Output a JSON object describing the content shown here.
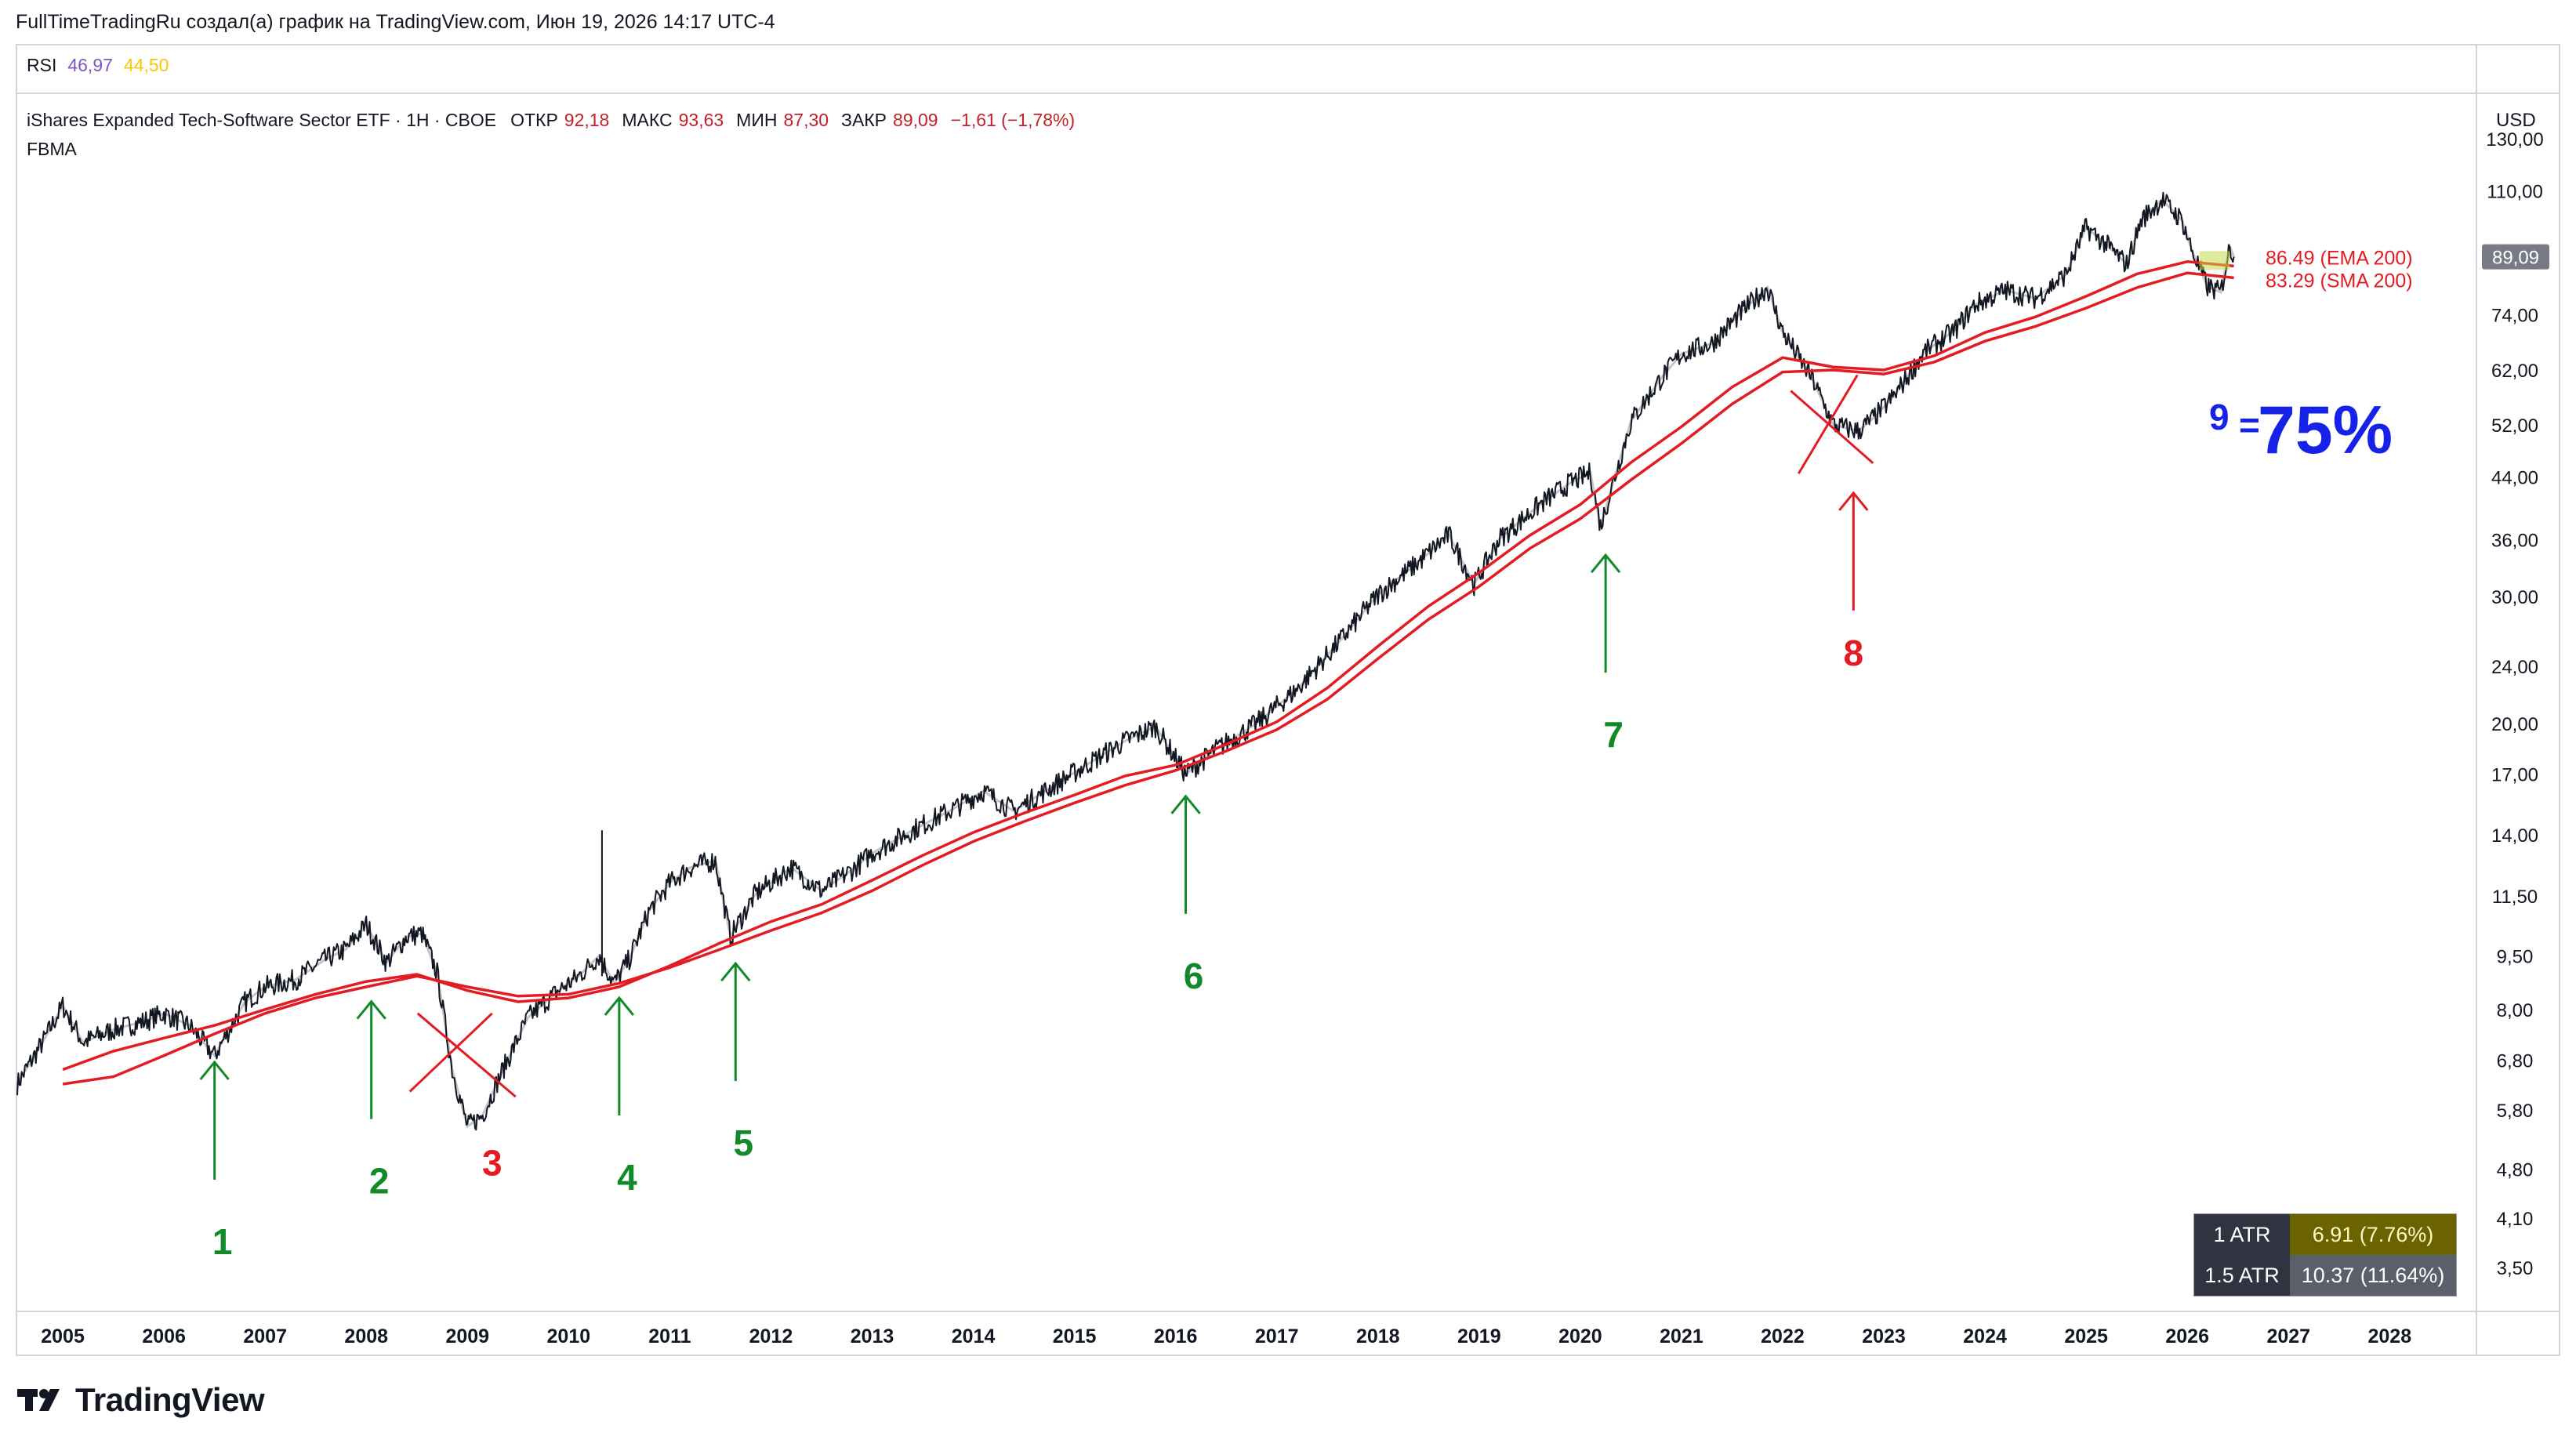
{
  "header": {
    "credit": "FullTimeTradingRu создал(а) график на TradingView.com, Июн 19, 2026 14:17 UTC-4"
  },
  "rsi": {
    "label": "RSI",
    "v1": "46,97",
    "v2": "44,50"
  },
  "legend": {
    "symbol": "iShares Expanded Tech-Software Sector ETF · 1H · CBOE",
    "open_k": "ОТКР",
    "open_v": "92,18",
    "high_k": "МАКС",
    "high_v": "93,63",
    "low_k": "МИН",
    "low_v": "87,30",
    "close_k": "ЗАКР",
    "close_v": "89,09",
    "change": "−1,61 (−1,78%)",
    "indicator": "FBMA"
  },
  "currency": "USD",
  "price_badge": "89,09",
  "ma_labels": {
    "ema": "86.49 (EMA 200)",
    "sma": "83.29 (SMA 200)"
  },
  "big_label": {
    "sup": "9",
    "eq": "=",
    "pct": "75%"
  },
  "atr": [
    {
      "k": "1 ATR",
      "v": "6.91 (7.76%)"
    },
    {
      "k": "1.5 ATR",
      "v": "10.37 (11.64%)"
    }
  ],
  "logo": "TradingView",
  "colors": {
    "green": "#138a2a",
    "red": "#e31b23",
    "blue": "#1722e8",
    "ma": "#e31b23"
  },
  "chart_data": {
    "type": "line",
    "scale": "log",
    "y_ticks": [
      130,
      110,
      89.09,
      74,
      62,
      52,
      44,
      36,
      30,
      24,
      20,
      17,
      14,
      11.5,
      9.5,
      8,
      6.8,
      5.8,
      4.8,
      4.1,
      3.5
    ],
    "y_tick_labels": [
      "130,00",
      "110,00",
      "",
      "74,00",
      "62,00",
      "52,00",
      "44,00",
      "36,00",
      "30,00",
      "24,00",
      "20,00",
      "17,00",
      "14,00",
      "11,50",
      "9,50",
      "8,00",
      "6,80",
      "5,80",
      "4,80",
      "4,10",
      "3,50"
    ],
    "x_ticks": [
      2005,
      2006,
      2007,
      2008,
      2009,
      2010,
      2011,
      2012,
      2013,
      2014,
      2015,
      2016,
      2017,
      2018,
      2019,
      2020,
      2021,
      2022,
      2023,
      2024,
      2025,
      2026,
      2027,
      2028
    ],
    "x_tick_labels": [
      "2005",
      "2006",
      "2007",
      "2008",
      "2009",
      "2010",
      "2011",
      "2012",
      "2013",
      "2014",
      "2015",
      "2016",
      "2017",
      "2018",
      "2019",
      "2020",
      "2021",
      "2022",
      "2023",
      "2024",
      "2025",
      "2026",
      "2027",
      "2028"
    ],
    "xlim": [
      2004.55,
      2028.85
    ],
    "ylim": [
      3.05,
      150
    ],
    "price": [
      [
        2004.55,
        6.3
      ],
      [
        2004.8,
        7.2
      ],
      [
        2005.0,
        8.1
      ],
      [
        2005.2,
        7.2
      ],
      [
        2005.5,
        7.5
      ],
      [
        2005.8,
        7.7
      ],
      [
        2006.0,
        7.9
      ],
      [
        2006.25,
        7.6
      ],
      [
        2006.5,
        6.9
      ],
      [
        2006.8,
        8.2
      ],
      [
        2007.0,
        8.6
      ],
      [
        2007.3,
        8.8
      ],
      [
        2007.6,
        9.4
      ],
      [
        2007.8,
        9.7
      ],
      [
        2008.0,
        10.5
      ],
      [
        2008.2,
        9.3
      ],
      [
        2008.4,
        10.1
      ],
      [
        2008.55,
        10.2
      ],
      [
        2008.7,
        9.0
      ],
      [
        2008.85,
        6.6
      ],
      [
        2009.0,
        5.5
      ],
      [
        2009.15,
        5.7
      ],
      [
        2009.35,
        6.6
      ],
      [
        2009.6,
        7.8
      ],
      [
        2009.9,
        8.5
      ],
      [
        2010.1,
        8.9
      ],
      [
        2010.3,
        9.5
      ],
      [
        2010.45,
        8.7
      ],
      [
        2010.6,
        9.4
      ],
      [
        2010.8,
        11.0
      ],
      [
        2011.0,
        12.0
      ],
      [
        2011.2,
        12.6
      ],
      [
        2011.45,
        12.9
      ],
      [
        2011.6,
        10.1
      ],
      [
        2011.85,
        11.6
      ],
      [
        2012.2,
        12.6
      ],
      [
        2012.5,
        11.7
      ],
      [
        2012.8,
        12.5
      ],
      [
        2013.0,
        13.2
      ],
      [
        2013.4,
        14.2
      ],
      [
        2013.8,
        15.2
      ],
      [
        2014.1,
        16.1
      ],
      [
        2014.4,
        15.1
      ],
      [
        2014.8,
        16.4
      ],
      [
        2015.2,
        17.8
      ],
      [
        2015.5,
        18.9
      ],
      [
        2015.8,
        19.8
      ],
      [
        2016.1,
        17.0
      ],
      [
        2016.4,
        18.4
      ],
      [
        2016.8,
        20.0
      ],
      [
        2017.2,
        22.3
      ],
      [
        2017.6,
        25.8
      ],
      [
        2018.0,
        30.2
      ],
      [
        2018.4,
        33.5
      ],
      [
        2018.7,
        36.6
      ],
      [
        2018.95,
        31.2
      ],
      [
        2019.2,
        36.1
      ],
      [
        2019.6,
        40.3
      ],
      [
        2019.9,
        43.2
      ],
      [
        2020.1,
        44.6
      ],
      [
        2020.2,
        37.6
      ],
      [
        2020.5,
        52.6
      ],
      [
        2020.8,
        60.4
      ],
      [
        2021.0,
        65.3
      ],
      [
        2021.3,
        67.5
      ],
      [
        2021.6,
        74.8
      ],
      [
        2021.85,
        80.8
      ],
      [
        2022.0,
        70.0
      ],
      [
        2022.3,
        60.0
      ],
      [
        2022.5,
        52.0
      ],
      [
        2022.75,
        51.0
      ],
      [
        2022.9,
        53.2
      ],
      [
        2023.1,
        57.0
      ],
      [
        2023.4,
        65.6
      ],
      [
        2023.7,
        70.4
      ],
      [
        2023.9,
        76.4
      ],
      [
        2024.2,
        80.0
      ],
      [
        2024.5,
        78.0
      ],
      [
        2024.8,
        84.2
      ],
      [
        2025.0,
        98.0
      ],
      [
        2025.2,
        92.6
      ],
      [
        2025.4,
        87.0
      ],
      [
        2025.55,
        100.5
      ],
      [
        2025.75,
        107.0
      ],
      [
        2025.95,
        100.0
      ],
      [
        2026.05,
        90.5
      ],
      [
        2026.2,
        81.0
      ],
      [
        2026.33,
        79.5
      ],
      [
        2026.42,
        92.0
      ],
      [
        2026.46,
        89.09
      ]
    ],
    "ema200": [
      [
        2005.0,
        6.6
      ],
      [
        2005.5,
        7.0
      ],
      [
        2006.0,
        7.3
      ],
      [
        2006.5,
        7.6
      ],
      [
        2007.0,
        8.0
      ],
      [
        2007.5,
        8.4
      ],
      [
        2008.0,
        8.75
      ],
      [
        2008.5,
        8.95
      ],
      [
        2009.0,
        8.5
      ],
      [
        2009.5,
        8.2
      ],
      [
        2010.0,
        8.3
      ],
      [
        2010.5,
        8.6
      ],
      [
        2011.0,
        9.2
      ],
      [
        2011.5,
        9.9
      ],
      [
        2012.0,
        10.6
      ],
      [
        2012.5,
        11.2
      ],
      [
        2013.0,
        12.1
      ],
      [
        2013.5,
        13.1
      ],
      [
        2014.0,
        14.1
      ],
      [
        2014.5,
        15.0
      ],
      [
        2015.0,
        15.9
      ],
      [
        2015.5,
        16.9
      ],
      [
        2016.0,
        17.5
      ],
      [
        2016.5,
        18.7
      ],
      [
        2017.0,
        20.1
      ],
      [
        2017.5,
        22.4
      ],
      [
        2018.0,
        25.6
      ],
      [
        2018.5,
        29.1
      ],
      [
        2019.0,
        32.4
      ],
      [
        2019.5,
        36.5
      ],
      [
        2020.0,
        40.3
      ],
      [
        2020.5,
        46.1
      ],
      [
        2021.0,
        51.7
      ],
      [
        2021.5,
        58.7
      ],
      [
        2022.0,
        64.5
      ],
      [
        2022.5,
        62.6
      ],
      [
        2023.0,
        62.0
      ],
      [
        2023.5,
        64.9
      ],
      [
        2024.0,
        69.9
      ],
      [
        2024.5,
        73.5
      ],
      [
        2025.0,
        78.5
      ],
      [
        2025.5,
        84.3
      ],
      [
        2026.0,
        87.7
      ],
      [
        2026.46,
        86.49
      ]
    ],
    "sma200": [
      [
        2005.0,
        6.3
      ],
      [
        2005.5,
        6.45
      ],
      [
        2006.0,
        6.9
      ],
      [
        2006.5,
        7.4
      ],
      [
        2007.0,
        7.9
      ],
      [
        2007.5,
        8.3
      ],
      [
        2008.0,
        8.6
      ],
      [
        2008.5,
        8.9
      ],
      [
        2009.0,
        8.6
      ],
      [
        2009.5,
        8.35
      ],
      [
        2010.0,
        8.4
      ],
      [
        2010.5,
        8.7
      ],
      [
        2011.0,
        9.15
      ],
      [
        2011.5,
        9.7
      ],
      [
        2012.0,
        10.3
      ],
      [
        2012.5,
        10.9
      ],
      [
        2013.0,
        11.7
      ],
      [
        2013.5,
        12.7
      ],
      [
        2014.0,
        13.7
      ],
      [
        2014.5,
        14.6
      ],
      [
        2015.0,
        15.5
      ],
      [
        2015.5,
        16.4
      ],
      [
        2016.0,
        17.2
      ],
      [
        2016.5,
        18.3
      ],
      [
        2017.0,
        19.6
      ],
      [
        2017.5,
        21.6
      ],
      [
        2018.0,
        24.6
      ],
      [
        2018.5,
        27.9
      ],
      [
        2019.0,
        31.0
      ],
      [
        2019.5,
        35.0
      ],
      [
        2020.0,
        38.5
      ],
      [
        2020.5,
        43.6
      ],
      [
        2021.0,
        49.0
      ],
      [
        2021.5,
        55.6
      ],
      [
        2022.0,
        61.6
      ],
      [
        2022.5,
        62.0
      ],
      [
        2023.0,
        61.2
      ],
      [
        2023.5,
        63.6
      ],
      [
        2024.0,
        68.0
      ],
      [
        2024.5,
        71.3
      ],
      [
        2025.0,
        75.6
      ],
      [
        2025.5,
        80.7
      ],
      [
        2026.0,
        84.6
      ],
      [
        2026.46,
        83.29
      ]
    ],
    "annotations": [
      {
        "label": "1",
        "color": "green",
        "x": 2006.5,
        "y": 7.0
      },
      {
        "label": "2",
        "color": "green",
        "x": 2008.05,
        "y": 8.5
      },
      {
        "label": "3",
        "color": "red",
        "x": 2009.05,
        "y": 6.8
      },
      {
        "label": "4",
        "color": "green",
        "x": 2010.5,
        "y": 8.6
      },
      {
        "label": "5",
        "color": "green",
        "x": 2011.65,
        "y": 9.6
      },
      {
        "label": "6",
        "color": "green",
        "x": 2016.1,
        "y": 16.4
      },
      {
        "label": "7",
        "color": "green",
        "x": 2020.25,
        "y": 35.5
      },
      {
        "label": "8",
        "color": "red",
        "x": 2022.7,
        "y": 56.0
      }
    ]
  }
}
